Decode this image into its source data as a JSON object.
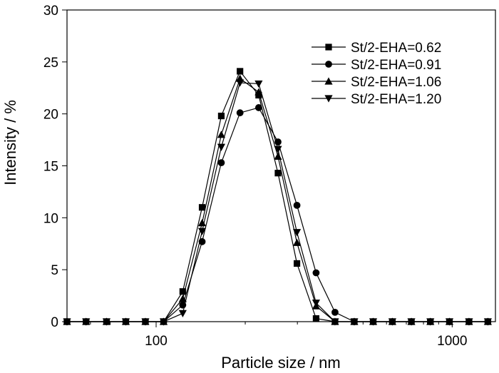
{
  "chart_data": {
    "type": "line",
    "title": "",
    "xlabel": "Particle size / nm",
    "ylabel": "Intensity / %",
    "x_scale": "log",
    "xlim": [
      50,
      1400
    ],
    "ylim": [
      0,
      30
    ],
    "x_ticks": [
      100,
      1000
    ],
    "x_tick_labels": [
      "100",
      "1000"
    ],
    "y_ticks": [
      0,
      5,
      10,
      15,
      20,
      25,
      30
    ],
    "y_tick_labels": [
      "0",
      "5",
      "10",
      "15",
      "20",
      "25",
      "30"
    ],
    "grid": false,
    "legend_position": "top-right",
    "series": [
      {
        "name": "St/2-EHA=0.62",
        "marker": "square",
        "x": [
          50,
          58,
          68,
          79,
          92,
          106,
          123,
          143,
          166,
          192,
          222,
          258,
          299,
          347,
          402,
          467,
          541,
          628,
          728,
          844,
          979,
          1140,
          1320
        ],
        "y": [
          0,
          0,
          0,
          0,
          0,
          0,
          2.9,
          11.0,
          19.8,
          24.1,
          21.8,
          14.3,
          5.6,
          0.3,
          0,
          0,
          0,
          0,
          0,
          0,
          0,
          0,
          0
        ]
      },
      {
        "name": "St/2-EHA=0.91",
        "marker": "circle",
        "x": [
          50,
          58,
          68,
          79,
          92,
          106,
          123,
          143,
          166,
          192,
          222,
          258,
          299,
          347,
          402,
          467,
          541,
          628,
          728,
          844,
          979,
          1140,
          1320
        ],
        "y": [
          0,
          0,
          0,
          0,
          0,
          0,
          1.6,
          7.7,
          15.3,
          20.1,
          20.6,
          17.3,
          11.2,
          4.7,
          0.9,
          0,
          0,
          0,
          0,
          0,
          0,
          0,
          0
        ]
      },
      {
        "name": "St/2-EHA=1.06",
        "marker": "triangle-up",
        "x": [
          50,
          58,
          68,
          79,
          92,
          106,
          123,
          143,
          166,
          192,
          222,
          258,
          299,
          347,
          402,
          467,
          541,
          628,
          728,
          844,
          979,
          1140,
          1320
        ],
        "y": [
          0,
          0,
          0,
          0,
          0,
          0,
          2.2,
          9.5,
          18.0,
          23.4,
          22.1,
          15.9,
          7.6,
          1.5,
          0,
          0,
          0,
          0,
          0,
          0,
          0,
          0,
          0
        ]
      },
      {
        "name": "St/2-EHA=1.20",
        "marker": "triangle-down",
        "x": [
          50,
          58,
          68,
          79,
          92,
          106,
          123,
          143,
          166,
          192,
          222,
          258,
          299,
          347,
          402,
          467,
          541,
          628,
          728,
          844,
          979,
          1140,
          1320
        ],
        "y": [
          0,
          0,
          0,
          0,
          0,
          0,
          0.8,
          8.7,
          16.8,
          23.0,
          22.9,
          16.6,
          8.6,
          1.8,
          0,
          0,
          0,
          0,
          0,
          0,
          0,
          0,
          0
        ]
      }
    ]
  }
}
